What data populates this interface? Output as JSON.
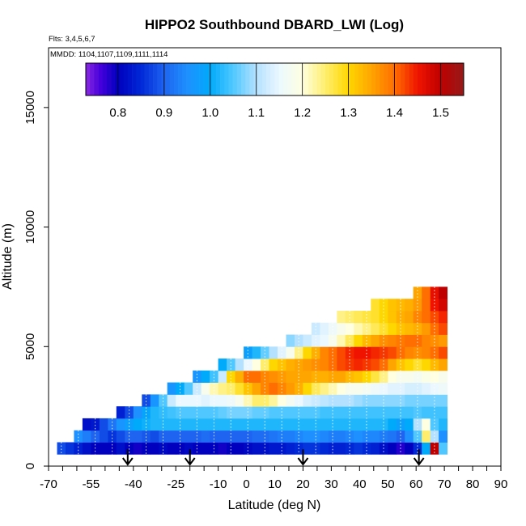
{
  "chart_data": {
    "type": "heatmap",
    "title": "HIPPO2 Southbound DBARD_LWI (Log)",
    "flights_label": "Flts: 3,4,5,6,7",
    "dates_label": "MMDD: 1104,1107,1109,1111,1114",
    "xlabel": "Latitude (deg N)",
    "ylabel": "Altitude (m)",
    "xlim": [
      -70,
      90
    ],
    "ylim": [
      0,
      17500
    ],
    "x_ticks": [
      -70,
      -55,
      -40,
      -25,
      -10,
      0,
      10,
      20,
      30,
      40,
      50,
      60,
      70,
      80,
      90
    ],
    "y_ticks": [
      0,
      5000,
      10000,
      15000
    ],
    "colorbar": {
      "range": [
        0.73,
        1.55
      ],
      "ticks": [
        "0.8",
        "0.9",
        "1.0",
        "1.1",
        "1.2",
        "1.3",
        "1.4",
        "1.5"
      ],
      "tick_values": [
        0.8,
        0.9,
        1.0,
        1.1,
        1.2,
        1.3,
        1.4,
        1.5
      ]
    },
    "arrow_latitudes": [
      -42,
      -20,
      20,
      61
    ],
    "bins": {
      "altitude_bands_m": [
        [
          500,
          1000
        ],
        [
          1000,
          1500
        ],
        [
          1500,
          2000
        ],
        [
          2000,
          2500
        ],
        [
          2500,
          3000
        ],
        [
          3000,
          3500
        ],
        [
          3500,
          4000
        ],
        [
          4000,
          4500
        ],
        [
          4500,
          5000
        ],
        [
          5000,
          5500
        ],
        [
          5500,
          6000
        ],
        [
          6000,
          6500
        ],
        [
          6500,
          7000
        ],
        [
          7000,
          7500
        ]
      ],
      "lat_start": -67,
      "lat_step": 3,
      "rows": [
        [
          0.88,
          0.86,
          0.84,
          0.82,
          0.8,
          0.8,
          0.8,
          0.82,
          0.8,
          0.79,
          0.8,
          0.8,
          0.81,
          0.8,
          0.8,
          0.81,
          0.8,
          0.8,
          0.8,
          0.79,
          0.8,
          0.8,
          0.81,
          0.82,
          0.82,
          0.83,
          0.83,
          0.84,
          0.85,
          0.86,
          0.86,
          0.85,
          0.84,
          0.84,
          0.85,
          0.86,
          0.85,
          0.84,
          0.82,
          0.8,
          0.78,
          0.8,
          0.85,
          1.0,
          1.5,
          1.05
        ],
        [
          null,
          null,
          0.95,
          0.93,
          0.9,
          0.88,
          0.86,
          0.88,
          0.9,
          0.9,
          0.89,
          0.88,
          0.9,
          0.9,
          0.9,
          0.9,
          0.9,
          0.91,
          0.9,
          0.9,
          0.9,
          0.9,
          0.9,
          0.91,
          0.91,
          0.92,
          0.93,
          0.93,
          0.94,
          0.95,
          0.95,
          0.94,
          0.93,
          0.93,
          0.94,
          0.95,
          0.94,
          0.94,
          0.93,
          0.92,
          0.9,
          0.95,
          1.05,
          1.25,
          1.1,
          0.95
        ],
        [
          null,
          null,
          null,
          0.82,
          0.83,
          0.88,
          0.92,
          0.96,
          0.98,
          1.0,
          1.01,
          1.02,
          1.02,
          1.02,
          1.02,
          1.02,
          1.02,
          1.02,
          1.02,
          1.02,
          1.02,
          1.02,
          1.02,
          1.02,
          1.02,
          1.02,
          1.02,
          1.02,
          1.02,
          1.02,
          1.02,
          1.02,
          1.02,
          1.02,
          1.02,
          1.02,
          1.02,
          1.02,
          1.02,
          1.0,
          0.98,
          1.0,
          1.1,
          1.2,
          1.05,
          1.02
        ],
        [
          null,
          null,
          null,
          null,
          null,
          null,
          null,
          0.84,
          0.88,
          0.95,
          0.99,
          1.02,
          1.03,
          1.04,
          1.05,
          1.05,
          1.05,
          1.05,
          1.05,
          1.06,
          1.07,
          1.07,
          1.07,
          1.06,
          1.06,
          1.05,
          1.05,
          1.05,
          1.05,
          1.05,
          1.05,
          1.04,
          1.04,
          1.04,
          1.04,
          1.04,
          1.04,
          1.04,
          1.04,
          1.04,
          1.04,
          1.04,
          1.05,
          1.04,
          1.04,
          1.04
        ],
        [
          null,
          null,
          null,
          null,
          null,
          null,
          null,
          null,
          null,
          null,
          0.88,
          0.96,
          1.05,
          1.12,
          1.15,
          1.15,
          1.15,
          1.14,
          1.15,
          1.15,
          1.16,
          1.18,
          1.22,
          1.25,
          1.25,
          1.23,
          1.2,
          1.17,
          1.15,
          1.13,
          1.12,
          1.11,
          1.1,
          1.1,
          1.1,
          1.09,
          1.08,
          1.08,
          1.08,
          1.08,
          1.08,
          1.07,
          1.07,
          1.07,
          1.07,
          1.07
        ],
        [
          null,
          null,
          null,
          null,
          null,
          null,
          null,
          null,
          null,
          null,
          null,
          null,
          null,
          0.96,
          1.0,
          1.05,
          1.12,
          1.18,
          1.22,
          1.24,
          1.25,
          1.28,
          1.32,
          1.35,
          1.38,
          1.4,
          1.38,
          1.36,
          1.34,
          1.3,
          1.26,
          1.24,
          1.22,
          1.2,
          1.18,
          1.18,
          1.17,
          1.16,
          1.15,
          1.14,
          1.14,
          1.13,
          1.13,
          1.14,
          1.15,
          1.16
        ],
        [
          null,
          null,
          null,
          null,
          null,
          null,
          null,
          null,
          null,
          null,
          null,
          null,
          null,
          null,
          null,
          null,
          0.96,
          1.0,
          1.04,
          1.12,
          1.3,
          1.34,
          1.4,
          1.4,
          1.38,
          1.37,
          1.36,
          1.35,
          1.35,
          1.35,
          1.34,
          1.34,
          1.35,
          1.35,
          1.33,
          1.32,
          1.3,
          1.27,
          1.24,
          1.2,
          1.18,
          1.18,
          1.17,
          1.19,
          1.2,
          1.18
        ],
        [
          null,
          null,
          null,
          null,
          null,
          null,
          null,
          null,
          null,
          null,
          null,
          null,
          null,
          null,
          null,
          null,
          null,
          null,
          null,
          1.0,
          1.05,
          1.1,
          1.15,
          1.2,
          1.25,
          1.3,
          1.32,
          1.34,
          1.35,
          1.36,
          1.37,
          1.38,
          1.4,
          1.42,
          1.43,
          1.44,
          1.43,
          1.42,
          1.4,
          1.35,
          1.32,
          1.3,
          1.28,
          1.3,
          1.33,
          1.35
        ],
        [
          null,
          null,
          null,
          null,
          null,
          null,
          null,
          null,
          null,
          null,
          null,
          null,
          null,
          null,
          null,
          null,
          null,
          null,
          null,
          null,
          null,
          null,
          0.98,
          1.02,
          1.06,
          1.1,
          1.14,
          1.18,
          1.24,
          1.3,
          1.34,
          1.38,
          1.4,
          1.42,
          1.44,
          1.45,
          1.45,
          1.44,
          1.43,
          1.42,
          1.4,
          1.38,
          1.37,
          1.38,
          1.4,
          1.42
        ],
        [
          null,
          null,
          null,
          null,
          null,
          null,
          null,
          null,
          null,
          null,
          null,
          null,
          null,
          null,
          null,
          null,
          null,
          null,
          null,
          null,
          null,
          null,
          null,
          null,
          null,
          null,
          null,
          1.08,
          1.1,
          1.12,
          1.14,
          1.15,
          1.18,
          1.22,
          1.26,
          1.3,
          1.33,
          1.35,
          1.37,
          1.38,
          1.39,
          1.4,
          1.4,
          1.38,
          1.37,
          1.36
        ],
        [
          null,
          null,
          null,
          null,
          null,
          null,
          null,
          null,
          null,
          null,
          null,
          null,
          null,
          null,
          null,
          null,
          null,
          null,
          null,
          null,
          null,
          null,
          null,
          null,
          null,
          null,
          null,
          null,
          null,
          null,
          1.12,
          1.14,
          1.16,
          1.18,
          1.2,
          1.22,
          1.24,
          1.26,
          1.28,
          1.3,
          1.32,
          1.33,
          1.34,
          1.36,
          1.4,
          1.42
        ],
        [
          null,
          null,
          null,
          null,
          null,
          null,
          null,
          null,
          null,
          null,
          null,
          null,
          null,
          null,
          null,
          null,
          null,
          null,
          null,
          null,
          null,
          null,
          null,
          null,
          null,
          null,
          null,
          null,
          null,
          null,
          null,
          null,
          null,
          1.24,
          1.25,
          1.26,
          1.27,
          1.28,
          1.3,
          1.32,
          1.34,
          1.35,
          1.38,
          1.4,
          1.42,
          1.44
        ],
        [
          null,
          null,
          null,
          null,
          null,
          null,
          null,
          null,
          null,
          null,
          null,
          null,
          null,
          null,
          null,
          null,
          null,
          null,
          null,
          null,
          null,
          null,
          null,
          null,
          null,
          null,
          null,
          null,
          null,
          null,
          null,
          null,
          null,
          null,
          null,
          null,
          null,
          1.28,
          1.3,
          1.32,
          1.33,
          1.34,
          1.36,
          1.4,
          1.45,
          1.48
        ],
        [
          null,
          null,
          null,
          null,
          null,
          null,
          null,
          null,
          null,
          null,
          null,
          null,
          null,
          null,
          null,
          null,
          null,
          null,
          null,
          null,
          null,
          null,
          null,
          null,
          null,
          null,
          null,
          null,
          null,
          null,
          null,
          null,
          null,
          null,
          null,
          null,
          null,
          null,
          null,
          null,
          null,
          null,
          1.35,
          1.4,
          1.46,
          1.5
        ]
      ]
    }
  }
}
